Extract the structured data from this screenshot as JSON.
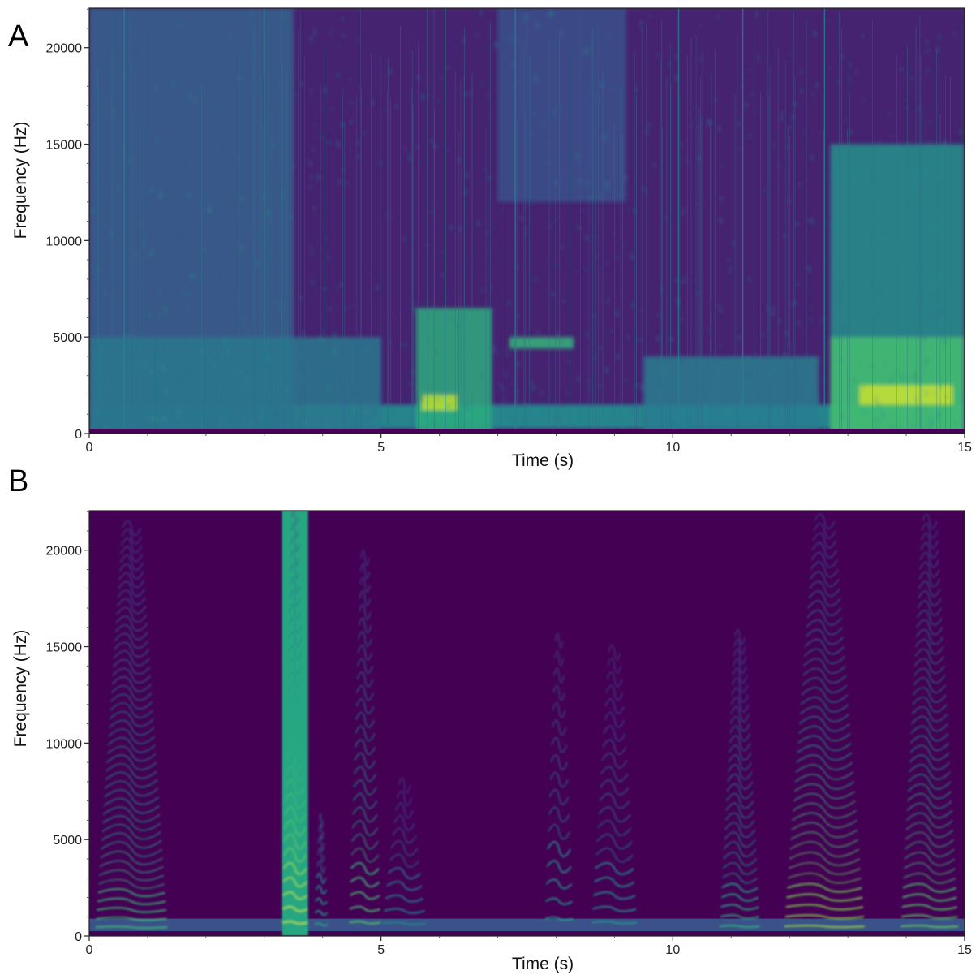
{
  "chart_data": [
    {
      "type": "heatmap",
      "panel_label": "A",
      "xlabel": "Time (s)",
      "ylabel": "Frequency (Hz)",
      "xlim": [
        0,
        15
      ],
      "ylim": [
        0,
        22050
      ],
      "xticks": [
        0,
        5,
        10,
        15
      ],
      "yticks": [
        0,
        5000,
        10000,
        15000,
        20000
      ],
      "colormap": [
        "#440154",
        "#46327e",
        "#365c8d",
        "#277f8e",
        "#1fa187",
        "#4ac16d",
        "#a0da39",
        "#fde725"
      ],
      "background_level": 0.1,
      "noise_floor_band": {
        "freq_range": [
          0,
          250
        ],
        "level": 0.0
      },
      "low_band": {
        "freq_range": [
          250,
          1500
        ],
        "level": 0.45
      },
      "energy_regions": [
        {
          "t": [
            0.0,
            3.5
          ],
          "f": [
            0,
            22050
          ],
          "level": 0.3
        },
        {
          "t": [
            0.0,
            5.0
          ],
          "f": [
            0,
            5000
          ],
          "level": 0.4
        },
        {
          "t": [
            5.6,
            6.9
          ],
          "f": [
            0,
            6500
          ],
          "level": 0.62
        },
        {
          "t": [
            5.7,
            6.3
          ],
          "f": [
            1200,
            2000
          ],
          "level": 0.9
        },
        {
          "t": [
            7.2,
            8.3
          ],
          "f": [
            4400,
            5000
          ],
          "level": 0.65
        },
        {
          "t": [
            7.0,
            9.2
          ],
          "f": [
            12000,
            22050
          ],
          "level": 0.25
        },
        {
          "t": [
            9.5,
            12.5
          ],
          "f": [
            0,
            4000
          ],
          "level": 0.42
        },
        {
          "t": [
            12.7,
            15.0
          ],
          "f": [
            0,
            15000
          ],
          "level": 0.5
        },
        {
          "t": [
            12.7,
            15.0
          ],
          "f": [
            0,
            5000
          ],
          "level": 0.7
        },
        {
          "t": [
            13.2,
            14.8
          ],
          "f": [
            1500,
            2500
          ],
          "level": 0.92
        }
      ],
      "transient_lines_s": [
        0.6,
        3.0,
        3.3,
        5.8,
        6.1,
        7.3,
        10.1,
        11.2,
        12.6
      ]
    },
    {
      "type": "heatmap",
      "panel_label": "B",
      "xlabel": "Time (s)",
      "ylabel": "Frequency (Hz)",
      "xlim": [
        0,
        15
      ],
      "ylim": [
        0,
        22050
      ],
      "xticks": [
        0,
        5,
        10,
        15
      ],
      "yticks": [
        0,
        5000,
        10000,
        15000,
        20000
      ],
      "colormap": [
        "#440154",
        "#46327e",
        "#365c8d",
        "#277f8e",
        "#1fa187",
        "#4ac16d",
        "#a0da39",
        "#fde725"
      ],
      "background_level": 0.0,
      "noise_floor_band": {
        "freq_range": [
          0,
          900
        ],
        "level": 0.25
      },
      "harmonic_calls": [
        {
          "t": [
            0.1,
            1.35
          ],
          "f0": 450,
          "max_freq": 21500,
          "level": 0.55
        },
        {
          "t": [
            3.3,
            3.75
          ],
          "f0": 700,
          "max_freq": 22050,
          "level": 0.75,
          "broadband": true
        },
        {
          "t": [
            3.85,
            4.1
          ],
          "f0": 600,
          "max_freq": 6000,
          "level": 0.5
        },
        {
          "t": [
            4.45,
            5.0
          ],
          "f0": 700,
          "max_freq": 20000,
          "level": 0.6
        },
        {
          "t": [
            5.0,
            5.8
          ],
          "f0": 650,
          "max_freq": 8000,
          "level": 0.35
        },
        {
          "t": [
            7.8,
            8.3
          ],
          "f0": 900,
          "max_freq": 16000,
          "level": 0.45
        },
        {
          "t": [
            8.6,
            9.4
          ],
          "f0": 700,
          "max_freq": 15000,
          "level": 0.4
        },
        {
          "t": [
            10.8,
            11.5
          ],
          "f0": 500,
          "max_freq": 15500,
          "level": 0.5
        },
        {
          "t": [
            11.9,
            13.3
          ],
          "f0": 500,
          "max_freq": 21500,
          "level": 0.7
        },
        {
          "t": [
            13.9,
            14.9
          ],
          "f0": 500,
          "max_freq": 21500,
          "level": 0.62
        }
      ]
    }
  ]
}
